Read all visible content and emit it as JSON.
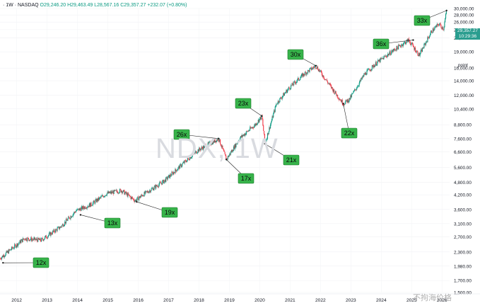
{
  "legend": {
    "prefix": "· 1W · NASDAQ",
    "open": "O29,246.20",
    "high": "H29,463.49",
    "low": "L28,567.16",
    "close": "C29,357.27",
    "change": "+232.07 (+0.80%)"
  },
  "watermark": "NDX, 1W",
  "footer_watermark": "不拘海价格",
  "price_box": {
    "price": "29,357.27",
    "time": "10:29:36"
  },
  "colors": {
    "up": "#089981",
    "down": "#f23645",
    "badge": "#37b34a",
    "badge_border": "#1c7a2c",
    "axis_text": "#131722"
  },
  "chart_data": {
    "type": "candlestick",
    "title": "",
    "symbol": "NDX",
    "timeframe": "1W",
    "y_axis_unit": "point",
    "y_scale": "log",
    "ylim": [
      1500,
      30000
    ],
    "xlim": [
      2011.5,
      2026.3
    ],
    "y_ticks": [
      "30,000.00",
      "28,000.00",
      "26,000.00",
      "24,000.00",
      "22,000.00",
      "19,000.00",
      "16,000.00",
      "14,000.00",
      "12,000.00",
      "10,400.00",
      "8,800.00",
      "7,600.00",
      "6,600.00",
      "5,600.00",
      "4,800.00",
      "4,200.00",
      "3,600.00",
      "3,100.00",
      "2,700.00",
      "2,300.00",
      "1,980.00",
      "1,700.00",
      "1,500.00"
    ],
    "x_ticks": [
      "2012",
      "2013",
      "2014",
      "2015",
      "2016",
      "2017",
      "2018",
      "2019",
      "2020",
      "2021",
      "2022",
      "2023",
      "2024",
      "2025",
      "2026"
    ],
    "price_path": [
      [
        2011.5,
        2150
      ],
      [
        2012.3,
        2650
      ],
      [
        2012.85,
        2600
      ],
      [
        2013.5,
        3000
      ],
      [
        2014.0,
        3550
      ],
      [
        2014.5,
        3800
      ],
      [
        2015.0,
        4250
      ],
      [
        2015.5,
        4400
      ],
      [
        2015.95,
        3950
      ],
      [
        2016.2,
        4200
      ],
      [
        2016.9,
        4850
      ],
      [
        2017.5,
        5800
      ],
      [
        2018.0,
        6700
      ],
      [
        2018.7,
        7600
      ],
      [
        2018.95,
        6100
      ],
      [
        2019.4,
        7650
      ],
      [
        2019.9,
        8800
      ],
      [
        2020.12,
        9650
      ],
      [
        2020.22,
        7200
      ],
      [
        2020.6,
        11000
      ],
      [
        2021.0,
        12900
      ],
      [
        2021.5,
        15000
      ],
      [
        2021.9,
        16400
      ],
      [
        2022.5,
        12500
      ],
      [
        2022.8,
        11000
      ],
      [
        2023.0,
        11500
      ],
      [
        2023.5,
        15000
      ],
      [
        2023.9,
        16900
      ],
      [
        2024.5,
        19500
      ],
      [
        2024.95,
        21500
      ],
      [
        2025.3,
        18300
      ],
      [
        2025.7,
        23500
      ],
      [
        2025.95,
        25500
      ],
      [
        2026.1,
        24200
      ],
      [
        2026.2,
        29357
      ]
    ],
    "annotations": [
      {
        "label": "12x",
        "x": 2011.6,
        "y": 2050
      },
      {
        "label": "13x",
        "x": 2014.15,
        "y": 3400
      },
      {
        "label": "19x",
        "x": 2016.0,
        "y": 3900
      },
      {
        "label": "26x",
        "x": 2018.7,
        "y": 7600
      },
      {
        "label": "17x",
        "x": 2018.95,
        "y": 6100
      },
      {
        "label": "23x",
        "x": 2020.12,
        "y": 9650
      },
      {
        "label": "21x",
        "x": 2020.22,
        "y": 7200
      },
      {
        "label": "30x",
        "x": 2021.9,
        "y": 16400
      },
      {
        "label": "22x",
        "x": 2022.8,
        "y": 11000
      },
      {
        "label": "36x",
        "x": 2025.1,
        "y": 21500
      },
      {
        "label": "33x",
        "x": 2026.2,
        "y": 29357
      }
    ]
  }
}
